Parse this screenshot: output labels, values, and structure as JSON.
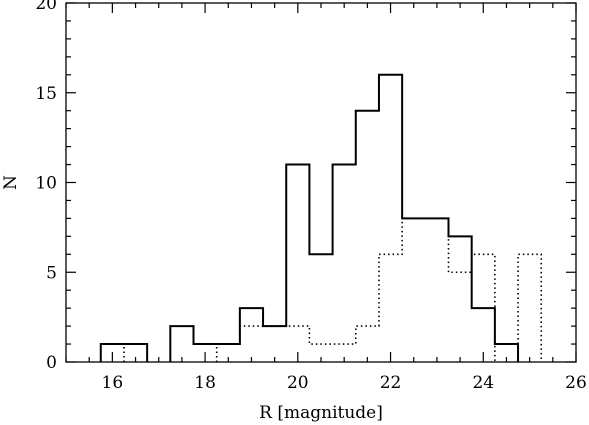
{
  "chart_data": {
    "type": "histogram",
    "xlabel": "R [magnitude]",
    "ylabel": "N",
    "xlim": [
      15,
      26
    ],
    "ylim": [
      0,
      20
    ],
    "grid": false,
    "legend": "none",
    "x_ticks": [
      16,
      18,
      20,
      22,
      24,
      26
    ],
    "y_ticks": [
      0,
      5,
      10,
      15,
      20
    ],
    "bin_width": 0.5,
    "series": [
      {
        "line_style": "solid",
        "bin_edges_start": [
          15.75,
          16.25,
          17.25,
          17.75,
          18.25,
          18.75,
          19.25,
          19.75,
          20.25,
          20.75,
          21.25,
          21.75,
          22.25,
          22.75,
          23.25,
          23.75,
          24.25
        ],
        "counts": [
          1,
          1,
          2,
          1,
          1,
          3,
          2,
          11,
          6,
          11,
          14,
          16,
          8,
          8,
          7,
          3,
          1
        ]
      },
      {
        "line_style": "dotted",
        "bin_edges_start": [
          16.25,
          18.25,
          18.75,
          19.25,
          19.75,
          20.25,
          20.75,
          21.25,
          21.75,
          22.25,
          22.75,
          23.25,
          23.75,
          24.75
        ],
        "counts": [
          1,
          1,
          2,
          2,
          2,
          1,
          1,
          2,
          6,
          8,
          8,
          5,
          6,
          6
        ]
      }
    ]
  }
}
